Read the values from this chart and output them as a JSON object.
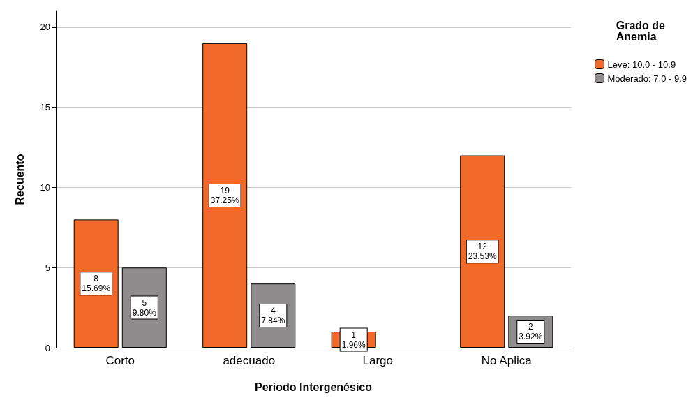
{
  "chart_data": {
    "type": "bar",
    "xlabel": "Periodo Intergenésico",
    "ylabel": "Recuento",
    "legend_title": "Grado de\nAnemia",
    "categories": [
      "Corto",
      "adecuado",
      "Largo",
      "No Aplica"
    ],
    "series": [
      {
        "name": "Leve: 10.0 - 10.9",
        "color": "#f26a2a",
        "values": [
          8,
          19,
          1,
          12
        ],
        "value_labels": [
          "8\n15.69%",
          "19\n37.25%",
          "1\n1.96%",
          "12\n23.53%"
        ]
      },
      {
        "name": "Moderado: 7.0 - 9.9",
        "color": "#8e8c8c",
        "values": [
          5,
          4,
          null,
          2
        ],
        "value_labels": [
          "5\n9.80%",
          "4\n7.84%",
          null,
          "2\n3.92%"
        ]
      }
    ],
    "ylim": [
      0,
      21
    ],
    "yticks": [
      0,
      5,
      10,
      15,
      20
    ],
    "grid": "y",
    "legend": "top right"
  }
}
